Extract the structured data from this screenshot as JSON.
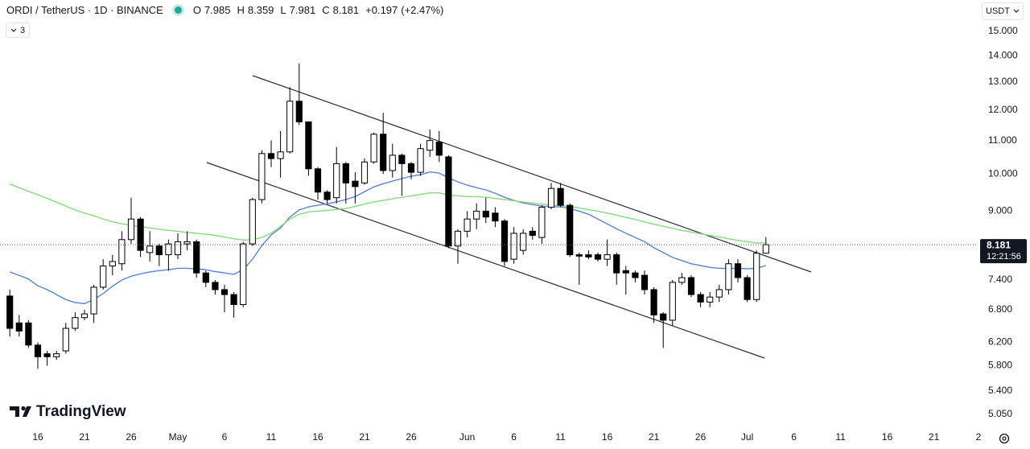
{
  "chart_data": {
    "type": "candlestick",
    "title": "ORDI / TetherUS · 1D · BINANCE",
    "ohlc_labels": [
      "O",
      "H",
      "L",
      "C"
    ],
    "change": "+0.197",
    "change_pct": "(+2.47%)",
    "currency": "USDT",
    "indicators_hidden": 3,
    "countdown": "12:21:56",
    "brand": "TradingView",
    "log_scale": true,
    "grid": false,
    "up_color": "#ffffff",
    "down_color": "#000000",
    "border_color": "#000000",
    "ylim": [
      4.88,
      16.4
    ],
    "yticks": [
      {
        "value": 15,
        "label": "15.000"
      },
      {
        "value": 14,
        "label": "14.000"
      },
      {
        "value": 13,
        "label": "13.000"
      },
      {
        "value": 12,
        "label": "12.000"
      },
      {
        "value": 11,
        "label": "11.000"
      },
      {
        "value": 10,
        "label": "10.000"
      },
      {
        "value": 9,
        "label": "9.000"
      },
      {
        "value": 7.4,
        "label": "7.400"
      },
      {
        "value": 6.8,
        "label": "6.800"
      },
      {
        "value": 6.2,
        "label": "6.200"
      },
      {
        "value": 5.8,
        "label": "5.800"
      },
      {
        "value": 5.4,
        "label": "5.400"
      },
      {
        "value": 5.05,
        "label": "5.050"
      }
    ],
    "categories": [
      null,
      null,
      null,
      "16",
      null,
      null,
      null,
      null,
      "21",
      null,
      null,
      null,
      null,
      "26",
      null,
      null,
      null,
      null,
      "May",
      null,
      null,
      null,
      null,
      "6",
      null,
      null,
      null,
      null,
      "11",
      null,
      null,
      null,
      null,
      "16",
      null,
      null,
      null,
      null,
      "21",
      null,
      null,
      null,
      null,
      "26",
      null,
      null,
      null,
      null,
      null,
      "Jun",
      null,
      null,
      null,
      null,
      "6",
      null,
      null,
      null,
      null,
      "11",
      null,
      null,
      null,
      null,
      "16",
      null,
      null,
      null,
      null,
      "21",
      null,
      null,
      null,
      null,
      "26",
      null,
      null,
      null,
      null,
      "Jul",
      null,
      null,
      null,
      null,
      "6",
      null,
      null,
      null,
      null,
      "11",
      null,
      null,
      null,
      null,
      "16",
      null,
      null,
      null,
      null,
      "21",
      null,
      null,
      null,
      null,
      "2"
    ],
    "open": [
      7.07,
      6.55,
      6.55,
      6.15,
      6.0,
      5.95,
      6.05,
      6.45,
      6.65,
      6.72,
      7.25,
      7.7,
      7.75,
      8.3,
      8.8,
      8.0,
      8.15,
      7.95,
      7.95,
      8.2,
      8.25,
      7.55,
      7.35,
      7.2,
      7.1,
      6.9,
      8.2,
      9.3,
      10.6,
      10.45,
      10.65,
      12.3,
      11.6,
      10.15,
      9.5,
      9.35,
      10.3,
      9.8,
      9.75,
      10.35,
      11.2,
      10.1,
      10.55,
      10.3,
      10.05,
      10.7,
      10.95,
      10.5,
      8.15,
      8.5,
      8.8,
      9.0,
      8.95,
      8.75,
      7.85,
      8.05,
      8.5,
      8.35,
      9.1,
      9.6,
      9.15,
      7.95,
      7.95,
      7.95,
      7.85,
      7.95,
      7.6,
      7.55,
      7.5,
      7.2,
      6.72,
      6.6,
      7.35,
      7.45,
      7.1,
      6.95,
      7.05,
      7.2,
      7.75,
      7.45,
      7.0,
      7.985,
      null,
      null,
      null,
      null,
      null,
      null,
      null,
      null,
      null,
      null,
      null,
      null,
      null,
      null,
      null,
      null,
      null,
      null,
      null,
      null,
      null,
      null,
      null
    ],
    "high": [
      7.2,
      6.7,
      6.6,
      6.2,
      6.05,
      6.05,
      6.55,
      6.75,
      6.8,
      7.3,
      7.85,
      7.95,
      8.5,
      9.35,
      8.85,
      8.5,
      8.2,
      8.3,
      8.45,
      8.5,
      8.3,
      7.6,
      7.4,
      7.3,
      7.15,
      8.25,
      9.35,
      10.7,
      11.0,
      11.3,
      12.8,
      13.7,
      11.6,
      10.2,
      9.55,
      10.8,
      10.35,
      10.05,
      10.45,
      11.25,
      11.9,
      10.9,
      10.6,
      10.35,
      10.9,
      11.35,
      11.3,
      10.55,
      8.55,
      9.0,
      9.2,
      9.35,
      9.1,
      8.8,
      8.6,
      8.55,
      8.6,
      9.15,
      9.75,
      9.75,
      9.2,
      8.0,
      8.05,
      8.0,
      8.3,
      8.0,
      7.7,
      7.6,
      7.6,
      7.25,
      6.75,
      7.4,
      7.55,
      7.5,
      7.15,
      7.15,
      7.3,
      7.85,
      7.85,
      7.5,
      8.05,
      8.359,
      null,
      null,
      null,
      null,
      null,
      null,
      null,
      null,
      null,
      null,
      null,
      null,
      null,
      null,
      null,
      null,
      null,
      null,
      null,
      null,
      null,
      null,
      null
    ],
    "low": [
      6.3,
      6.3,
      6.1,
      5.75,
      5.8,
      5.9,
      6.0,
      6.4,
      6.6,
      6.55,
      7.2,
      7.5,
      7.6,
      8.2,
      7.9,
      7.8,
      7.7,
      7.6,
      7.85,
      8.05,
      7.45,
      7.25,
      7.1,
      6.75,
      6.65,
      6.85,
      8.15,
      9.2,
      10.2,
      9.9,
      10.6,
      11.5,
      9.95,
      9.3,
      9.2,
      9.2,
      9.2,
      9.2,
      9.7,
      10.3,
      10.0,
      9.9,
      9.4,
      9.85,
      9.95,
      10.5,
      10.35,
      8.1,
      7.75,
      8.35,
      8.55,
      8.7,
      8.6,
      7.7,
      7.75,
      7.95,
      8.3,
      8.2,
      9.05,
      9.1,
      7.9,
      7.3,
      7.85,
      7.8,
      7.7,
      7.3,
      7.1,
      7.35,
      7.1,
      6.55,
      6.1,
      6.5,
      7.3,
      7.05,
      6.85,
      6.85,
      6.95,
      7.1,
      7.35,
      6.95,
      6.95,
      7.981,
      null,
      null,
      null,
      null,
      null,
      null,
      null,
      null,
      null,
      null,
      null,
      null,
      null,
      null,
      null,
      null,
      null,
      null,
      null,
      null,
      null,
      null,
      null
    ],
    "close": [
      6.45,
      6.4,
      6.15,
      5.95,
      5.95,
      6.0,
      6.45,
      6.65,
      6.72,
      7.25,
      7.7,
      7.8,
      8.3,
      8.8,
      8.05,
      8.15,
      7.95,
      8.2,
      8.25,
      8.25,
      7.55,
      7.35,
      7.2,
      7.1,
      6.9,
      8.2,
      9.3,
      10.6,
      10.45,
      10.65,
      12.3,
      11.6,
      10.15,
      9.5,
      9.3,
      10.3,
      9.75,
      9.65,
      10.35,
      11.2,
      10.1,
      10.55,
      10.3,
      10.05,
      10.75,
      11.0,
      10.55,
      8.15,
      8.5,
      8.8,
      9.0,
      8.85,
      8.75,
      7.8,
      8.45,
      8.45,
      8.4,
      9.1,
      9.6,
      9.15,
      7.95,
      7.92,
      7.9,
      7.85,
      7.95,
      7.55,
      7.55,
      7.45,
      7.2,
      6.7,
      6.6,
      7.35,
      7.45,
      7.1,
      6.95,
      7.05,
      7.2,
      7.75,
      7.45,
      7.0,
      7.985,
      8.181,
      null,
      null,
      null,
      null,
      null,
      null,
      null,
      null,
      null,
      null,
      null,
      null,
      null,
      null,
      null,
      null,
      null,
      null,
      null,
      null,
      null,
      null,
      null
    ],
    "moving_averages": [
      {
        "color": "#5b84d6",
        "values": [
          7.57,
          7.5,
          7.42,
          7.28,
          7.2,
          7.1,
          7.0,
          6.94,
          6.92,
          7.0,
          7.12,
          7.27,
          7.4,
          7.48,
          7.53,
          7.57,
          7.6,
          7.62,
          7.65,
          7.65,
          7.64,
          7.62,
          7.58,
          7.55,
          7.52,
          7.62,
          7.85,
          8.16,
          8.41,
          8.58,
          8.85,
          9.03,
          9.11,
          9.15,
          9.19,
          9.24,
          9.3,
          9.38,
          9.51,
          9.64,
          9.73,
          9.8,
          9.87,
          9.94,
          9.98,
          10.06,
          10.03,
          9.89,
          9.78,
          9.69,
          9.62,
          9.56,
          9.47,
          9.36,
          9.28,
          9.21,
          9.17,
          9.13,
          9.11,
          9.11,
          9.07,
          9.0,
          8.92,
          8.8,
          8.68,
          8.56,
          8.45,
          8.35,
          8.25,
          8.11,
          8.0,
          7.89,
          7.82,
          7.75,
          7.71,
          7.67,
          7.65,
          7.65,
          7.65,
          7.64,
          7.65,
          7.71,
          null,
          null,
          null,
          null,
          null,
          null,
          null,
          null,
          null,
          null,
          null,
          null,
          null,
          null,
          null,
          null,
          null,
          null,
          null,
          null,
          null,
          null,
          null
        ]
      },
      {
        "color": "#86dc7e",
        "values": [
          9.72,
          9.62,
          9.52,
          9.43,
          9.33,
          9.23,
          9.13,
          9.03,
          8.95,
          8.88,
          8.8,
          8.73,
          8.68,
          8.64,
          8.61,
          8.58,
          8.55,
          8.52,
          8.5,
          8.47,
          8.45,
          8.43,
          8.4,
          8.36,
          8.32,
          8.29,
          8.3,
          8.35,
          8.45,
          8.62,
          8.8,
          8.92,
          8.98,
          9.0,
          9.02,
          9.04,
          9.07,
          9.12,
          9.18,
          9.24,
          9.28,
          9.32,
          9.36,
          9.4,
          9.44,
          9.48,
          9.48,
          9.42,
          9.4,
          9.38,
          9.38,
          9.36,
          9.33,
          9.3,
          9.27,
          9.24,
          9.21,
          9.18,
          9.16,
          9.14,
          9.12,
          9.08,
          9.04,
          9.0,
          8.95,
          8.9,
          8.84,
          8.79,
          8.73,
          8.67,
          8.62,
          8.57,
          8.52,
          8.48,
          8.44,
          8.4,
          8.36,
          8.32,
          8.28,
          8.25,
          8.22,
          8.22,
          null,
          null,
          null,
          null,
          null,
          null,
          null,
          null,
          null,
          null,
          null,
          null,
          null,
          null,
          null,
          null,
          null,
          null,
          null,
          null,
          null,
          null,
          null
        ]
      }
    ]
  }
}
